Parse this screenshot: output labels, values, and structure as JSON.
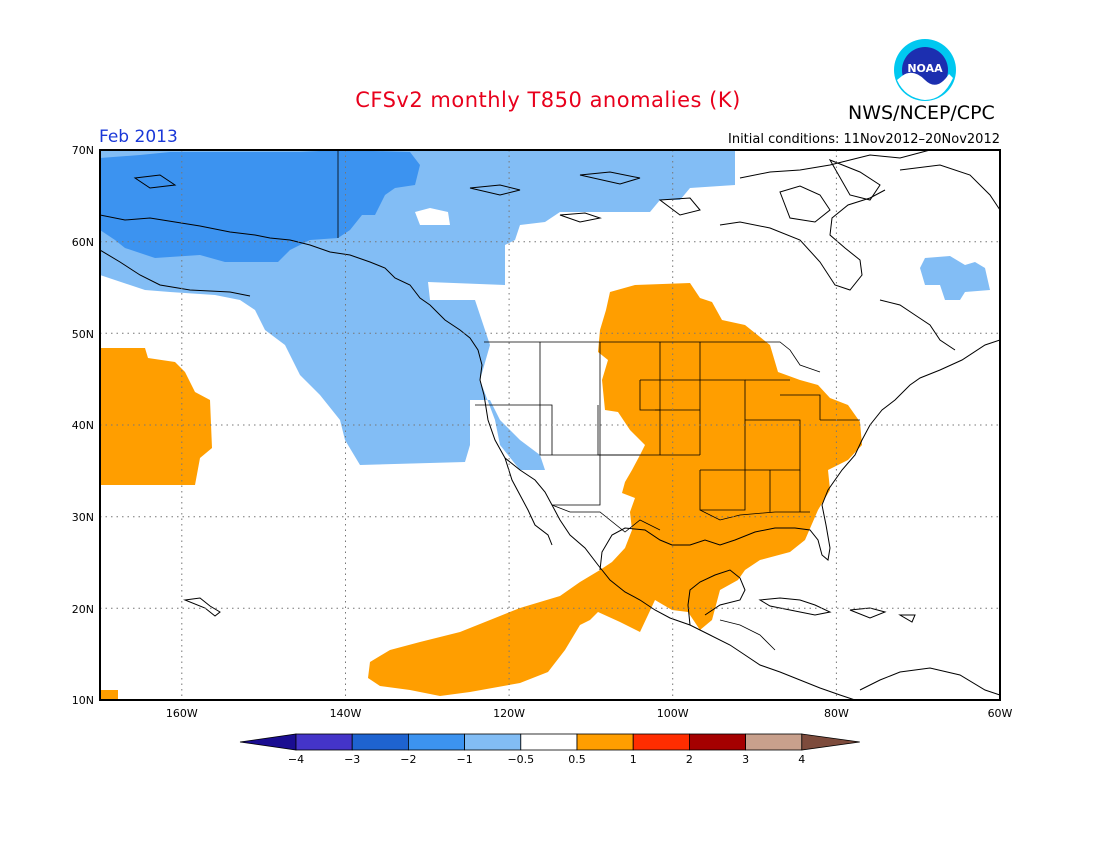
{
  "title": "CFSv2 monthly T850 anomalies (K)",
  "agency": "NWS/NCEP/CPC",
  "logo_text": "NOAA",
  "period": "Feb 2013",
  "initial_conditions": "Initial conditions: 11Nov2012–20Nov2012",
  "lat_labels": [
    "70N",
    "60N",
    "50N",
    "40N",
    "30N",
    "20N",
    "10N"
  ],
  "lon_labels": [
    "160W",
    "140W",
    "120W",
    "100W",
    "80W",
    "60W"
  ],
  "colorbar": {
    "labels": [
      "−4",
      "−3",
      "−2",
      "−1",
      "−0.5",
      "0.5",
      "1",
      "2",
      "3",
      "4"
    ],
    "colors": [
      "#1a0d91",
      "#4434c8",
      "#1e63d0",
      "#3c93f0",
      "#82bdf5",
      "#ffffff",
      "#ff9e00",
      "#ff2d00",
      "#a50000",
      "#c8a08c",
      "#7d4b3c"
    ]
  },
  "colors": {
    "warm": "#ff9e00",
    "cool_light": "#82bdf5",
    "cool_mid": "#3c93f0",
    "title": "#e8001c",
    "period": "#1a38d8"
  }
}
